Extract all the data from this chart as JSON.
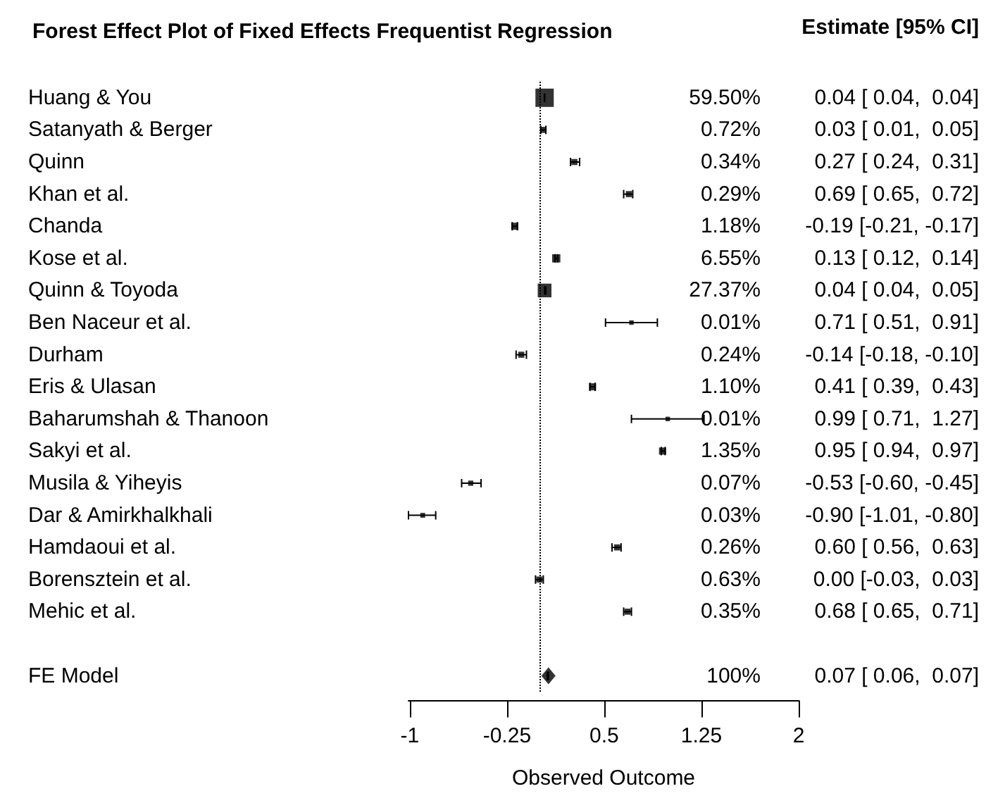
{
  "chart_data": {
    "type": "scatter",
    "orientation": "horizontal",
    "title": "Forest Effect Plot of Fixed Effects Frequentist Regression",
    "xlabel": "Observed Outcome",
    "annotations": [
      "Estimate [95% CI]"
    ],
    "categories": [
      "Huang & You",
      "Satanyath & Berger",
      "Quinn",
      "Khan et al.",
      "Chanda",
      "Kose et al.",
      "Quinn & Toyoda",
      "Ben Naceur et al.",
      "Durham",
      "Eris & Ulasan",
      "Baharumshah & Thanoon",
      "Sakyi et al.",
      "Musila & Yiheyis",
      "Dar & Amirkhalkhali",
      "Hamdaoui et al.",
      "Borensztein et al.",
      "Mehic et al.",
      null,
      "FE Model"
    ],
    "y2_categories": [
      "59.50%",
      "0.72%",
      "0.34%",
      "0.29%",
      "1.18%",
      "6.55%",
      "27.37%",
      "0.01%",
      "0.24%",
      "1.10%",
      "0.01%",
      "1.35%",
      "0.07%",
      "0.03%",
      "0.26%",
      "0.63%",
      "0.35%",
      null,
      "100%"
    ],
    "value_labels": [
      "0.04 [ 0.04,  0.04]",
      "0.03 [ 0.01,  0.05]",
      "0.27 [ 0.24,  0.31]",
      "0.69 [ 0.65,  0.72]",
      "-0.19 [-0.21, -0.17]",
      "0.13 [ 0.12,  0.14]",
      "0.04 [ 0.04,  0.05]",
      "0.71 [ 0.51,  0.91]",
      "-0.14 [-0.18, -0.10]",
      "0.41 [ 0.39,  0.43]",
      "0.99 [ 0.71,  1.27]",
      "0.95 [ 0.94,  0.97]",
      "-0.53 [-0.60, -0.45]",
      "-0.90 [-1.01, -0.80]",
      "0.60 [ 0.56,  0.63]",
      "0.00 [-0.03,  0.03]",
      "0.68 [ 0.65,  0.71]",
      null,
      "0.07 [ 0.06,  0.07]"
    ],
    "series": [
      {
        "color": "#000000",
        "marker": "square",
        "values": [
          0.04,
          0.03,
          0.27,
          0.69,
          -0.19,
          0.13,
          0.04,
          0.71,
          -0.14,
          0.41,
          0.99,
          0.95,
          -0.53,
          -0.9,
          0.6,
          0.0,
          0.68,
          null,
          null
        ],
        "errors": [
          [
            0.04,
            0.04
          ],
          [
            0.01,
            0.05
          ],
          [
            0.24,
            0.31
          ],
          [
            0.65,
            0.72
          ],
          [
            -0.21,
            -0.17
          ],
          [
            0.12,
            0.14
          ],
          [
            0.04,
            0.05
          ],
          [
            0.51,
            0.91
          ],
          [
            -0.18,
            -0.1
          ],
          [
            0.39,
            0.43
          ],
          [
            0.71,
            1.27
          ],
          [
            0.94,
            0.97
          ],
          [
            -0.6,
            -0.45
          ],
          [
            -1.01,
            -0.8
          ],
          [
            0.56,
            0.63
          ],
          [
            -0.03,
            0.03
          ],
          [
            0.65,
            0.71
          ],
          null,
          null
        ],
        "sizes": [
          1,
          0.11,
          0.11,
          0.11,
          0.15,
          0.2,
          0.56,
          0.06,
          0.11,
          0.15,
          0.06,
          0.15,
          0.08,
          0.07,
          0.11,
          0.11,
          0.11,
          null,
          null
        ]
      },
      {
        "color": "#000000",
        "marker": "diamond",
        "values": [
          null,
          null,
          null,
          null,
          null,
          null,
          null,
          null,
          null,
          null,
          null,
          null,
          null,
          null,
          null,
          null,
          null,
          null,
          0.07
        ],
        "errors": [
          null,
          null,
          null,
          null,
          null,
          null,
          null,
          null,
          null,
          null,
          null,
          null,
          null,
          null,
          null,
          null,
          null,
          null,
          [
            0.06,
            0.07
          ]
        ]
      }
    ],
    "xlim": [
      -1.01,
      2
    ],
    "xticks": [
      -1,
      -0.25,
      0.5,
      1.25,
      2
    ],
    "ref_lines": [
      {
        "axis": "x",
        "value": 0,
        "line_style": "dotted"
      }
    ]
  }
}
